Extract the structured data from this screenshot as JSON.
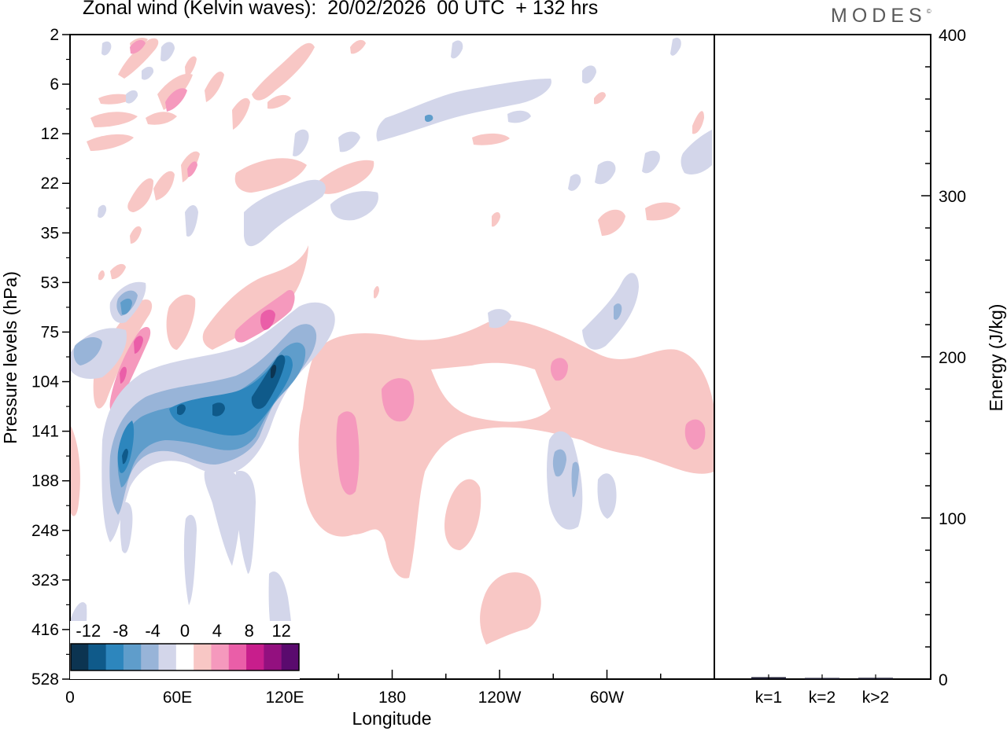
{
  "header": {
    "title": "Zonal wind (Kelvin waves):  20/02/2026  00 UTC  + 132 hrs",
    "logo": "MODES",
    "logo_mark": "©"
  },
  "chart_data": [
    {
      "type": "heatmap",
      "title": "Zonal wind (Kelvin waves):  20/02/2026  00 UTC  + 132 hrs",
      "xlabel": "Longitude",
      "ylabel": "Pressure levels (hPa)",
      "x_ticks": [
        "0",
        "60E",
        "120E",
        "180",
        "120W",
        "60W"
      ],
      "y_ticks": [
        "2",
        "6",
        "12",
        "22",
        "35",
        "53",
        "75",
        "104",
        "141",
        "188",
        "248",
        "323",
        "416",
        "528"
      ],
      "colorbar": {
        "labels": [
          "-12",
          "-8",
          "-4",
          "0",
          "4",
          "8",
          "12"
        ],
        "levels": [
          -14,
          -12,
          -10,
          -8,
          -6,
          -4,
          -2,
          2,
          4,
          6,
          8,
          10,
          12,
          14
        ],
        "colors": [
          "#0c3451",
          "#0f5a8a",
          "#2d86bd",
          "#5f9dcb",
          "#98b4d8",
          "#d3d6ea",
          "#ffffff",
          "#f8c7c5",
          "#f599bd",
          "#ea5ea8",
          "#c81e8c",
          "#93107f",
          "#5a0a6e"
        ]
      },
      "features": [
        {
          "name": "blue-band-main",
          "value": -8
        },
        {
          "name": "blue-core-120E",
          "value": -12
        },
        {
          "name": "pink-band-east",
          "value": 4
        },
        {
          "name": "pink-core-90E",
          "value": 8
        }
      ]
    },
    {
      "type": "bar",
      "ylabel": "Energy (J/kg)",
      "categories": [
        "k=1",
        "k=2",
        "k>2"
      ],
      "values": [
        1.2,
        0.5,
        0.8
      ],
      "ylim": [
        0,
        400
      ],
      "y_ticks": [
        "0",
        "100",
        "200",
        "300",
        "400"
      ]
    }
  ]
}
